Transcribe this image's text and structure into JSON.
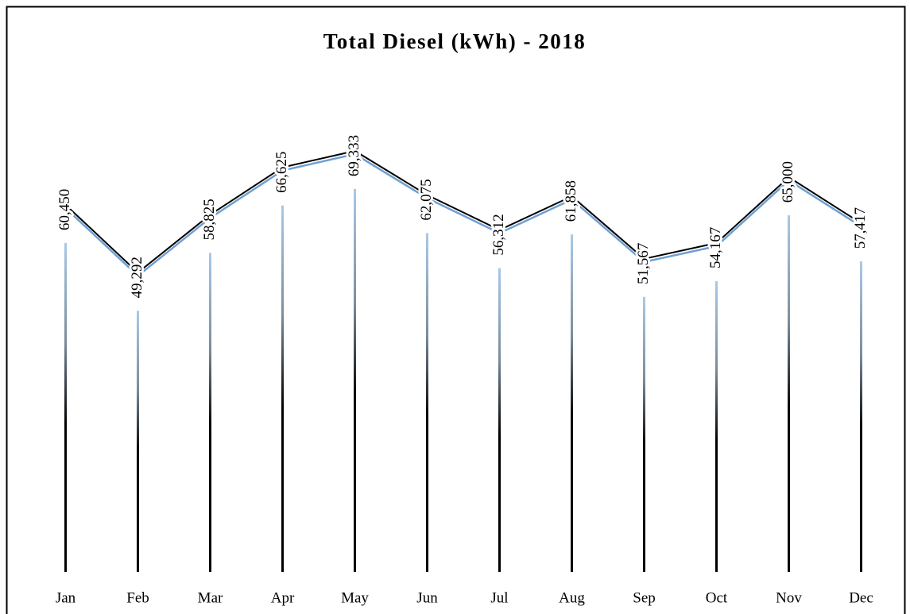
{
  "chart_data": {
    "type": "line",
    "title": "Total Diesel (kWh) - 2018",
    "categories": [
      "Jan",
      "Feb",
      "Mar",
      "Apr",
      "May",
      "Jun",
      "Jul",
      "Aug",
      "Sep",
      "Oct",
      "Nov",
      "Dec"
    ],
    "values": [
      60450,
      49292,
      58825,
      66625,
      69333,
      62075,
      56312,
      61858,
      51567,
      54167,
      65000,
      57417
    ],
    "value_labels": [
      "60,450",
      "49,292",
      "58,825",
      "66,625",
      "69,333",
      "62,075",
      "56,312",
      "61,858",
      "51,567",
      "54,167",
      "65,000",
      "57,417"
    ],
    "color": "#000000"
  }
}
